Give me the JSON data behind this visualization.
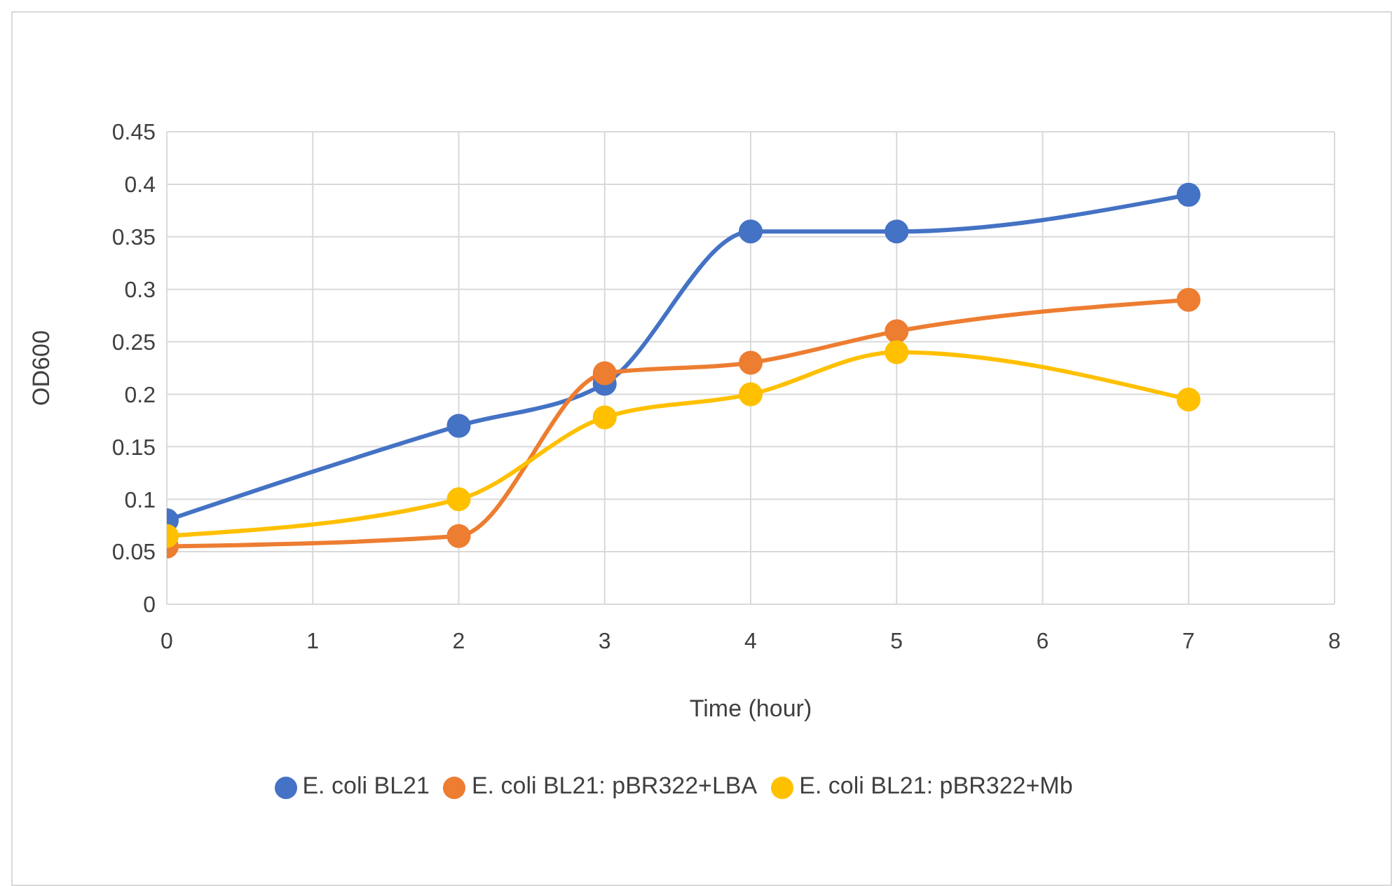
{
  "chart_data": {
    "type": "line",
    "xlabel": "Time (hour)",
    "ylabel": "OD600",
    "x": [
      0,
      2,
      3,
      4,
      5,
      7
    ],
    "series": [
      {
        "name": "E. coli BL21",
        "color": "#4472c4",
        "values": [
          0.08,
          0.17,
          0.21,
          0.355,
          0.355,
          0.39
        ]
      },
      {
        "name": "E. coli BL21: pBR322+LBA",
        "color": "#ed7d31",
        "values": [
          0.055,
          0.065,
          0.22,
          0.23,
          0.26,
          0.29
        ]
      },
      {
        "name": "E. coli BL21: pBR322+Mb",
        "color": "#ffc000",
        "values": [
          0.065,
          0.1,
          0.178,
          0.2,
          0.24,
          0.195
        ]
      }
    ],
    "xlim": [
      0,
      8
    ],
    "xticks": [
      0,
      1,
      2,
      3,
      4,
      5,
      6,
      7,
      8
    ],
    "ylim": [
      0,
      0.45
    ],
    "yticks": [
      0,
      0.05,
      0.1,
      0.15,
      0.2,
      0.25,
      0.3,
      0.35,
      0.4,
      0.45
    ],
    "grid": true,
    "legend": "bottom",
    "marker": "circle",
    "line_style": "solid"
  }
}
